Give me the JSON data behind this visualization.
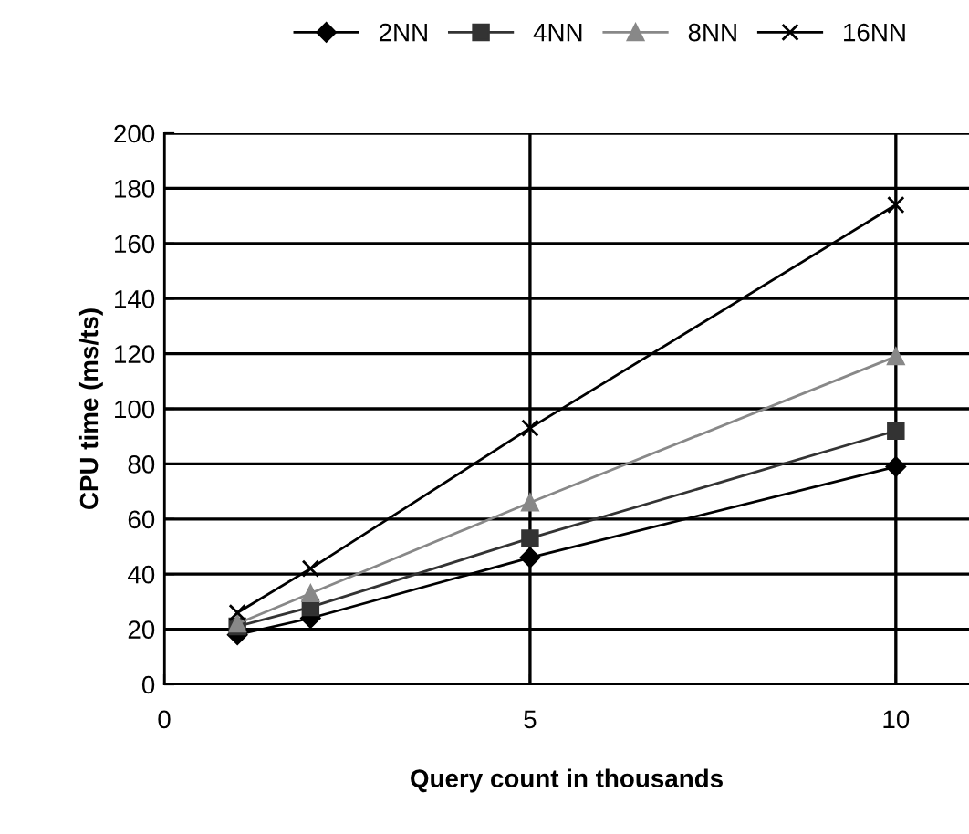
{
  "chart_data": {
    "type": "line",
    "xlabel": "Query count in thousands",
    "ylabel": "CPU time (ms/ts)",
    "x": [
      1,
      2,
      5,
      10
    ],
    "series": [
      {
        "name": "2NN",
        "color": "#000000",
        "marker": "diamond",
        "values": [
          18,
          24,
          46,
          79
        ]
      },
      {
        "name": "4NN",
        "color": "#333333",
        "marker": "square",
        "values": [
          21,
          28,
          53,
          92
        ]
      },
      {
        "name": "8NN",
        "color": "#888888",
        "marker": "triangle",
        "values": [
          22,
          33,
          66,
          119
        ]
      },
      {
        "name": "16NN",
        "color": "#000000",
        "marker": "cross",
        "values": [
          26,
          42,
          93,
          174
        ]
      }
    ],
    "xlim": [
      0,
      11
    ],
    "xticks": [
      0,
      5,
      10
    ],
    "ylim": [
      0,
      200
    ],
    "yticks": [
      0,
      20,
      40,
      60,
      80,
      100,
      120,
      140,
      160,
      180,
      200
    ],
    "grid": true,
    "legend": "top"
  }
}
